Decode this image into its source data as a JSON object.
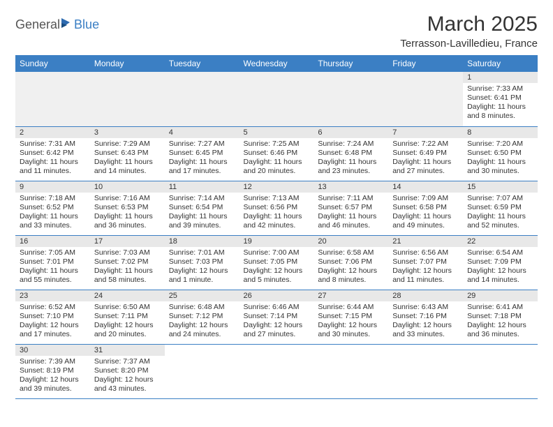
{
  "logo": {
    "text_general": "General",
    "text_blue": "Blue",
    "icon_color": "#2e6bb0"
  },
  "header": {
    "month_title": "March 2025",
    "location": "Terrasson-Lavilledieu, France"
  },
  "colors": {
    "header_bg": "#3b7fc4",
    "header_text": "#ffffff",
    "daynum_bg": "#e8e8e8",
    "border": "#3b7fc4",
    "text": "#333333",
    "empty_bg": "#f0f0f0"
  },
  "weekdays": [
    "Sunday",
    "Monday",
    "Tuesday",
    "Wednesday",
    "Thursday",
    "Friday",
    "Saturday"
  ],
  "weeks": [
    [
      null,
      null,
      null,
      null,
      null,
      null,
      {
        "num": "1",
        "sunrise": "Sunrise: 7:33 AM",
        "sunset": "Sunset: 6:41 PM",
        "daylight": "Daylight: 11 hours and 8 minutes."
      }
    ],
    [
      {
        "num": "2",
        "sunrise": "Sunrise: 7:31 AM",
        "sunset": "Sunset: 6:42 PM",
        "daylight": "Daylight: 11 hours and 11 minutes."
      },
      {
        "num": "3",
        "sunrise": "Sunrise: 7:29 AM",
        "sunset": "Sunset: 6:43 PM",
        "daylight": "Daylight: 11 hours and 14 minutes."
      },
      {
        "num": "4",
        "sunrise": "Sunrise: 7:27 AM",
        "sunset": "Sunset: 6:45 PM",
        "daylight": "Daylight: 11 hours and 17 minutes."
      },
      {
        "num": "5",
        "sunrise": "Sunrise: 7:25 AM",
        "sunset": "Sunset: 6:46 PM",
        "daylight": "Daylight: 11 hours and 20 minutes."
      },
      {
        "num": "6",
        "sunrise": "Sunrise: 7:24 AM",
        "sunset": "Sunset: 6:48 PM",
        "daylight": "Daylight: 11 hours and 23 minutes."
      },
      {
        "num": "7",
        "sunrise": "Sunrise: 7:22 AM",
        "sunset": "Sunset: 6:49 PM",
        "daylight": "Daylight: 11 hours and 27 minutes."
      },
      {
        "num": "8",
        "sunrise": "Sunrise: 7:20 AM",
        "sunset": "Sunset: 6:50 PM",
        "daylight": "Daylight: 11 hours and 30 minutes."
      }
    ],
    [
      {
        "num": "9",
        "sunrise": "Sunrise: 7:18 AM",
        "sunset": "Sunset: 6:52 PM",
        "daylight": "Daylight: 11 hours and 33 minutes."
      },
      {
        "num": "10",
        "sunrise": "Sunrise: 7:16 AM",
        "sunset": "Sunset: 6:53 PM",
        "daylight": "Daylight: 11 hours and 36 minutes."
      },
      {
        "num": "11",
        "sunrise": "Sunrise: 7:14 AM",
        "sunset": "Sunset: 6:54 PM",
        "daylight": "Daylight: 11 hours and 39 minutes."
      },
      {
        "num": "12",
        "sunrise": "Sunrise: 7:13 AM",
        "sunset": "Sunset: 6:56 PM",
        "daylight": "Daylight: 11 hours and 42 minutes."
      },
      {
        "num": "13",
        "sunrise": "Sunrise: 7:11 AM",
        "sunset": "Sunset: 6:57 PM",
        "daylight": "Daylight: 11 hours and 46 minutes."
      },
      {
        "num": "14",
        "sunrise": "Sunrise: 7:09 AM",
        "sunset": "Sunset: 6:58 PM",
        "daylight": "Daylight: 11 hours and 49 minutes."
      },
      {
        "num": "15",
        "sunrise": "Sunrise: 7:07 AM",
        "sunset": "Sunset: 6:59 PM",
        "daylight": "Daylight: 11 hours and 52 minutes."
      }
    ],
    [
      {
        "num": "16",
        "sunrise": "Sunrise: 7:05 AM",
        "sunset": "Sunset: 7:01 PM",
        "daylight": "Daylight: 11 hours and 55 minutes."
      },
      {
        "num": "17",
        "sunrise": "Sunrise: 7:03 AM",
        "sunset": "Sunset: 7:02 PM",
        "daylight": "Daylight: 11 hours and 58 minutes."
      },
      {
        "num": "18",
        "sunrise": "Sunrise: 7:01 AM",
        "sunset": "Sunset: 7:03 PM",
        "daylight": "Daylight: 12 hours and 1 minute."
      },
      {
        "num": "19",
        "sunrise": "Sunrise: 7:00 AM",
        "sunset": "Sunset: 7:05 PM",
        "daylight": "Daylight: 12 hours and 5 minutes."
      },
      {
        "num": "20",
        "sunrise": "Sunrise: 6:58 AM",
        "sunset": "Sunset: 7:06 PM",
        "daylight": "Daylight: 12 hours and 8 minutes."
      },
      {
        "num": "21",
        "sunrise": "Sunrise: 6:56 AM",
        "sunset": "Sunset: 7:07 PM",
        "daylight": "Daylight: 12 hours and 11 minutes."
      },
      {
        "num": "22",
        "sunrise": "Sunrise: 6:54 AM",
        "sunset": "Sunset: 7:09 PM",
        "daylight": "Daylight: 12 hours and 14 minutes."
      }
    ],
    [
      {
        "num": "23",
        "sunrise": "Sunrise: 6:52 AM",
        "sunset": "Sunset: 7:10 PM",
        "daylight": "Daylight: 12 hours and 17 minutes."
      },
      {
        "num": "24",
        "sunrise": "Sunrise: 6:50 AM",
        "sunset": "Sunset: 7:11 PM",
        "daylight": "Daylight: 12 hours and 20 minutes."
      },
      {
        "num": "25",
        "sunrise": "Sunrise: 6:48 AM",
        "sunset": "Sunset: 7:12 PM",
        "daylight": "Daylight: 12 hours and 24 minutes."
      },
      {
        "num": "26",
        "sunrise": "Sunrise: 6:46 AM",
        "sunset": "Sunset: 7:14 PM",
        "daylight": "Daylight: 12 hours and 27 minutes."
      },
      {
        "num": "27",
        "sunrise": "Sunrise: 6:44 AM",
        "sunset": "Sunset: 7:15 PM",
        "daylight": "Daylight: 12 hours and 30 minutes."
      },
      {
        "num": "28",
        "sunrise": "Sunrise: 6:43 AM",
        "sunset": "Sunset: 7:16 PM",
        "daylight": "Daylight: 12 hours and 33 minutes."
      },
      {
        "num": "29",
        "sunrise": "Sunrise: 6:41 AM",
        "sunset": "Sunset: 7:18 PM",
        "daylight": "Daylight: 12 hours and 36 minutes."
      }
    ],
    [
      {
        "num": "30",
        "sunrise": "Sunrise: 7:39 AM",
        "sunset": "Sunset: 8:19 PM",
        "daylight": "Daylight: 12 hours and 39 minutes."
      },
      {
        "num": "31",
        "sunrise": "Sunrise: 7:37 AM",
        "sunset": "Sunset: 8:20 PM",
        "daylight": "Daylight: 12 hours and 43 minutes."
      },
      null,
      null,
      null,
      null,
      null
    ]
  ]
}
